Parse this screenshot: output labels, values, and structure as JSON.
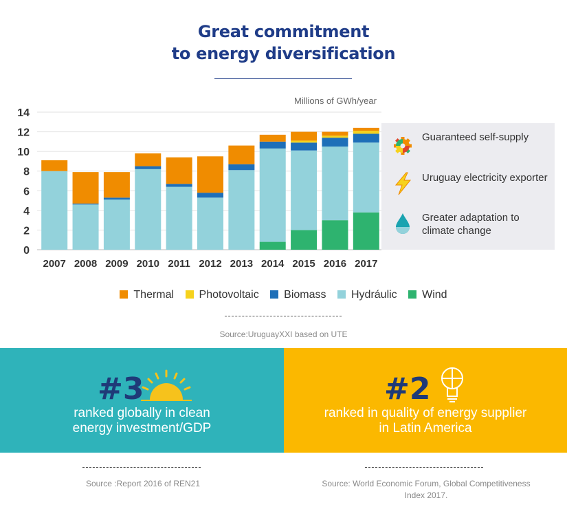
{
  "header": {
    "title_line1": "Great commitment",
    "title_line2": "to energy diversification"
  },
  "chart_data": {
    "type": "bar",
    "stacked": true,
    "ylabel": "Millions of GWh/year",
    "ylim": [
      0,
      14
    ],
    "yticks": [
      0,
      2,
      4,
      6,
      8,
      10,
      12,
      14
    ],
    "grid": true,
    "legend_position": "bottom",
    "categories": [
      "2007",
      "2008",
      "2009",
      "2010",
      "2011",
      "2012",
      "2013",
      "2014",
      "2015",
      "2016",
      "2017"
    ],
    "series": [
      {
        "name": "Wind",
        "color": "#2eb36f",
        "values": [
          0,
          0,
          0,
          0,
          0,
          0,
          0,
          0.8,
          2.0,
          3.0,
          3.8
        ]
      },
      {
        "name": "Hydráulic",
        "color": "#93d2db",
        "values": [
          8.0,
          4.6,
          5.1,
          8.2,
          6.4,
          5.3,
          8.1,
          9.5,
          8.1,
          7.5,
          7.1
        ]
      },
      {
        "name": "Biomass",
        "color": "#1e6fb8",
        "values": [
          0,
          0.1,
          0.2,
          0.3,
          0.3,
          0.5,
          0.6,
          0.7,
          0.8,
          0.9,
          0.9
        ]
      },
      {
        "name": "Photovoltaic",
        "color": "#f6d21c",
        "values": [
          0,
          0,
          0,
          0,
          0,
          0,
          0,
          0,
          0.2,
          0.2,
          0.3
        ]
      },
      {
        "name": "Thermal",
        "color": "#f08c00",
        "values": [
          1.1,
          3.2,
          2.6,
          1.3,
          2.7,
          3.7,
          1.9,
          0.7,
          0.9,
          0.4,
          0.3
        ]
      }
    ]
  },
  "legend": [
    {
      "label": "Thermal",
      "color": "#f08c00"
    },
    {
      "label": "Photovoltaic",
      "color": "#f6d21c"
    },
    {
      "label": "Biomass",
      "color": "#1e6fb8"
    },
    {
      "label": "Hydráulic",
      "color": "#93d2db"
    },
    {
      "label": "Wind",
      "color": "#2eb36f"
    }
  ],
  "side_panel": {
    "items": [
      {
        "icon": "gear-icon",
        "text": "Guaranteed self-supply"
      },
      {
        "icon": "lightning-icon",
        "text": "Uruguay electricity exporter"
      },
      {
        "icon": "water-drop-icon",
        "text": "Greater adaptation to climate change"
      }
    ]
  },
  "chart_source": "Source:UruguayXXI based on UTE",
  "stats": [
    {
      "rank": "#3",
      "icon": "sun-icon",
      "description_line1": "ranked globally in clean",
      "description_line2": "energy investment/GDP",
      "background": "#2fb3ba",
      "source": "Source :Report 2016 of REN21"
    },
    {
      "rank": "#2",
      "icon": "lightbulb-icon",
      "description_line1": "ranked in quality of energy supplier",
      "description_line2": "in Latin America",
      "background": "#fbb800",
      "source_line1": "Source: World Economic Forum, Global Competitiveness",
      "source_line2": "Index  2017."
    }
  ]
}
